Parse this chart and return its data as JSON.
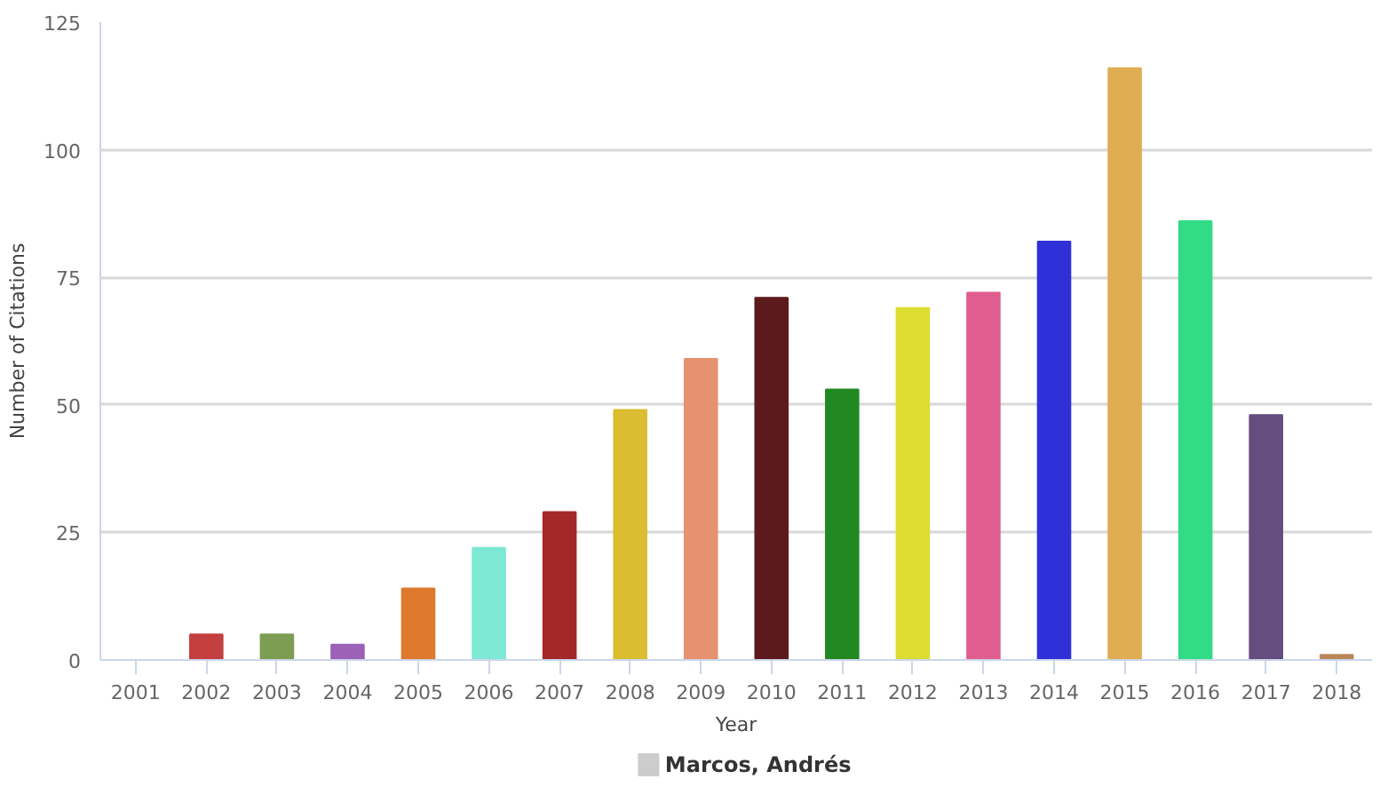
{
  "chart_data": {
    "type": "bar",
    "xlabel": "Year",
    "ylabel": "Number of Citations",
    "categories": [
      "2001",
      "2002",
      "2003",
      "2004",
      "2005",
      "2006",
      "2007",
      "2008",
      "2009",
      "2010",
      "2011",
      "2012",
      "2013",
      "2014",
      "2015",
      "2016",
      "2017",
      "2018"
    ],
    "series": [
      {
        "name": "Marcos, Andrés",
        "color": "#cccccc",
        "colors": [
          "#cccccc",
          "#c43f3f",
          "#7d9d52",
          "#9b62b8",
          "#df792d",
          "#7de8d3",
          "#a32828",
          "#dabd30",
          "#e6916f",
          "#5d1a1d",
          "#228822",
          "#dcdc31",
          "#e05e8f",
          "#3030d8",
          "#e0ad52",
          "#31dc84",
          "#654d80",
          "#b8865a"
        ],
        "values": [
          0,
          5,
          5,
          3,
          14,
          22,
          29,
          49,
          59,
          71,
          53,
          69,
          72,
          82,
          116,
          86,
          48,
          1
        ]
      }
    ],
    "ylim": [
      0,
      125
    ],
    "yticks": [
      0,
      25,
      50,
      75,
      100,
      125
    ],
    "grid": "y",
    "legend": "bottom"
  }
}
